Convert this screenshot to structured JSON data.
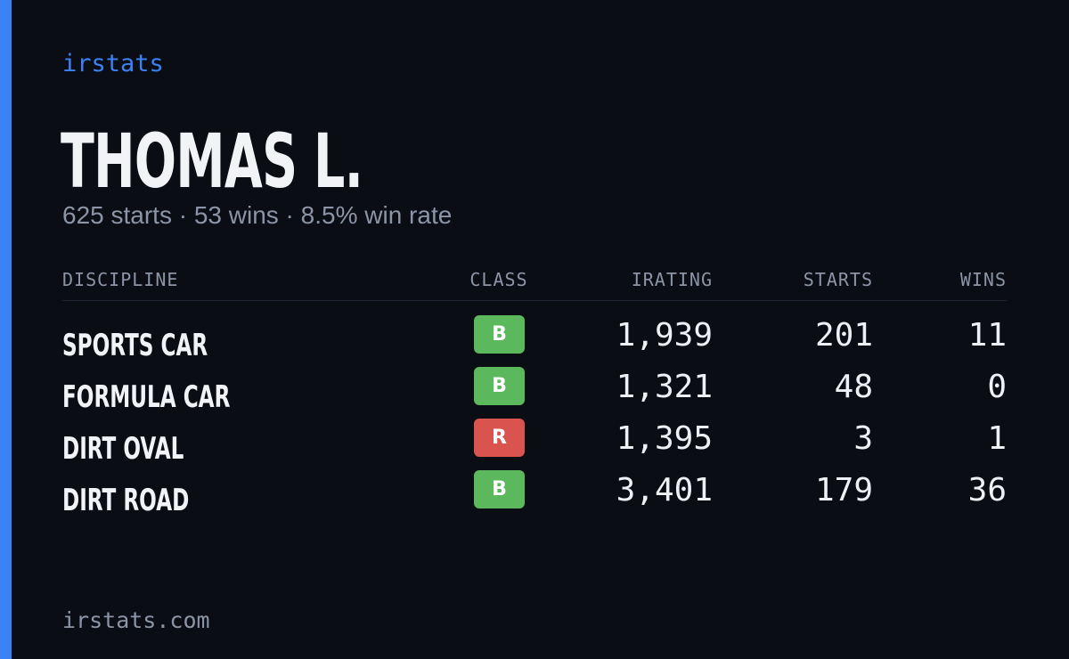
{
  "brand": {
    "label": "irstats"
  },
  "driver": {
    "name": "THOMAS L.",
    "summary": "625 starts · 53 wins · 8.5% win rate"
  },
  "table": {
    "headers": {
      "discipline": "DISCIPLINE",
      "class": "CLASS",
      "irating": "IRATING",
      "starts": "STARTS",
      "wins": "WINS"
    },
    "rows": [
      {
        "discipline": "SPORTS CAR",
        "class": "B",
        "class_color": "#5cb85c",
        "irating": "1,939",
        "starts": "201",
        "wins": "11"
      },
      {
        "discipline": "FORMULA CAR",
        "class": "B",
        "class_color": "#5cb85c",
        "irating": "1,321",
        "starts": "48",
        "wins": "0"
      },
      {
        "discipline": "DIRT OVAL",
        "class": "R",
        "class_color": "#d9534f",
        "irating": "1,395",
        "starts": "3",
        "wins": "1"
      },
      {
        "discipline": "DIRT ROAD",
        "class": "B",
        "class_color": "#5cb85c",
        "irating": "3,401",
        "starts": "179",
        "wins": "36"
      }
    ]
  },
  "footer": {
    "site": "irstats.com"
  },
  "colors": {
    "accent": "#3b82f6",
    "background": "#0a0d14",
    "class_b": "#5cb85c",
    "class_r": "#d9534f"
  }
}
